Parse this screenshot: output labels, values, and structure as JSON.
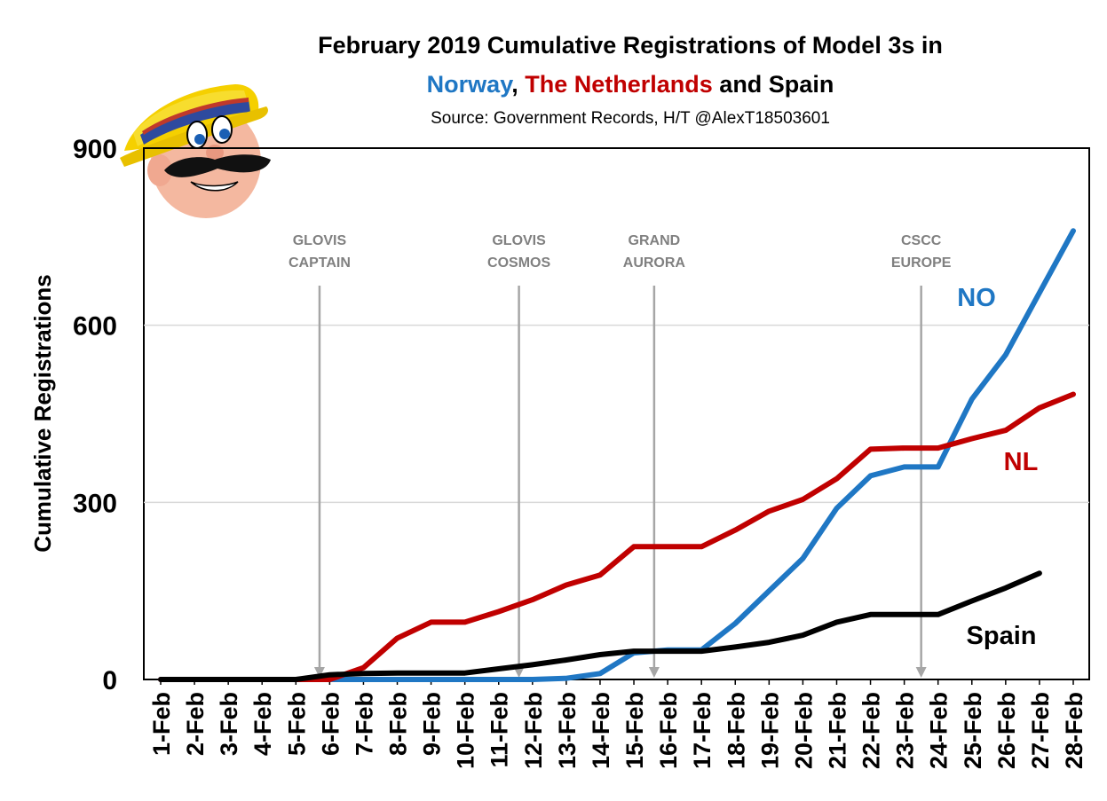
{
  "title": {
    "line1": "February 2019 Cumulative Registrations of Model 3s in",
    "line2_norway": "Norway",
    "line2_sep": ",",
    "line2_nl": "The Netherlands",
    "line2_rest": "and Spain"
  },
  "source": "Source: Government Records, H/T @AlexT18503601",
  "colors": {
    "norway": "#1f77c4",
    "netherlands": "#c00000",
    "spain": "#000000",
    "ship_line": "#a6a6a6",
    "ship_label": "#808080",
    "grid": "#d9d9d9"
  },
  "chart_data": {
    "type": "line",
    "title": "February 2019 Cumulative Registrations of Model 3s in Norway, The Netherlands and Spain",
    "xlabel": "",
    "ylabel": "Cumulative Registrations",
    "ylim": [
      0,
      900
    ],
    "yticks": [
      0,
      300,
      600,
      900
    ],
    "grid": true,
    "categories": [
      "1-Feb",
      "2-Feb",
      "3-Feb",
      "4-Feb",
      "5-Feb",
      "6-Feb",
      "7-Feb",
      "8-Feb",
      "9-Feb",
      "10-Feb",
      "11-Feb",
      "12-Feb",
      "13-Feb",
      "14-Feb",
      "15-Feb",
      "16-Feb",
      "17-Feb",
      "18-Feb",
      "19-Feb",
      "20-Feb",
      "21-Feb",
      "22-Feb",
      "23-Feb",
      "24-Feb",
      "25-Feb",
      "26-Feb",
      "27-Feb",
      "28-Feb"
    ],
    "series": [
      {
        "name": "NO",
        "key": "norway",
        "values": [
          0,
          0,
          0,
          0,
          0,
          0,
          0,
          0,
          0,
          0,
          0,
          0,
          2,
          10,
          45,
          50,
          50,
          95,
          150,
          205,
          290,
          345,
          360,
          360,
          475,
          550,
          655,
          760
        ]
      },
      {
        "name": "NL",
        "key": "netherlands",
        "values": [
          0,
          0,
          0,
          0,
          0,
          0,
          20,
          70,
          97,
          97,
          115,
          135,
          160,
          177,
          225,
          225,
          225,
          253,
          285,
          305,
          340,
          390,
          392,
          392,
          408,
          422,
          460,
          483
        ]
      },
      {
        "name": "Spain",
        "key": "spain",
        "values": [
          0,
          0,
          0,
          0,
          0,
          8,
          10,
          11,
          11,
          11,
          18,
          25,
          33,
          42,
          48,
          48,
          48,
          55,
          63,
          75,
          97,
          110,
          110,
          110,
          133,
          155,
          180,
          null
        ]
      }
    ],
    "annotations": [
      {
        "line1": "GLOVIS",
        "line2": "CAPTAIN",
        "at": 4.7
      },
      {
        "line1": "GLOVIS",
        "line2": "COSMOS",
        "at": 10.6
      },
      {
        "line1": "GRAND",
        "line2": "AURORA",
        "at": 14.6
      },
      {
        "line1": "CSCC",
        "line2": "EUROPE",
        "at": 22.5
      }
    ]
  }
}
